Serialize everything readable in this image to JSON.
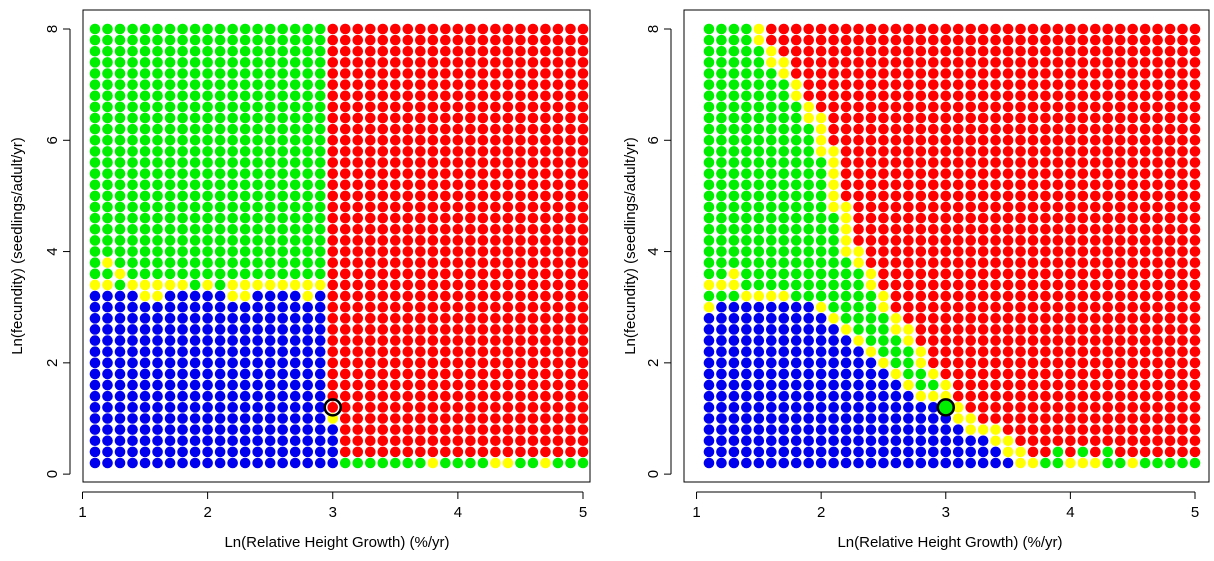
{
  "colors": {
    "red": "#ff0000",
    "green": "#00ee00",
    "blue": "#0000ee",
    "yellow": "#ffff00",
    "axis": "#000000",
    "highlight_ring": "#000000"
  },
  "chart_data": [
    {
      "type": "scatter",
      "title": "",
      "xlabel": "Ln(Relative Height Growth) (%/yr)",
      "ylabel": "Ln(fecundity) (seedlings/adult/yr)",
      "xlim": [
        1.05,
        5.05
      ],
      "ylim": [
        -0.1,
        8.2
      ],
      "xticks": [
        1,
        2,
        3,
        4,
        5
      ],
      "yticks": [
        0,
        2,
        4,
        6,
        8
      ],
      "grid": false,
      "grid_points": {
        "x_start": 1.1,
        "x_end": 5.0,
        "x_step": 0.1,
        "y_start": 0.2,
        "y_end": 8.0,
        "y_step": 0.2
      },
      "regions": "left panel: red where x >= 3.0; blue where x < 3.0 and y <= 3.2; yellow band at y = 3.4 (and a few points at 3.6-3.8); green elsewhere; bottom row y = 0.2 for x >= 3.1 is green with some yellow; x = 3.0 column yellow near y = 1.0",
      "highlight": {
        "x": 3.0,
        "y": 1.2,
        "fill": "none"
      }
    },
    {
      "type": "scatter",
      "title": "",
      "xlabel": "Ln(Relative Height Growth) (%/yr)",
      "ylabel": "Ln(fecundity) (seedlings/adult/yr)",
      "xlim": [
        1.05,
        5.05
      ],
      "ylim": [
        -0.1,
        8.2
      ],
      "xticks": [
        1,
        2,
        3,
        4,
        5
      ],
      "yticks": [
        0,
        2,
        4,
        6,
        8
      ],
      "grid": false,
      "grid_points": {
        "x_start": 1.1,
        "x_end": 5.0,
        "x_step": 0.1,
        "y_start": 0.2,
        "y_end": 8.0,
        "y_step": 0.2
      },
      "regions": "right panel: curved boundary; red region above/right of boundary x ~ 1.5 at top down to x ~ 3 at y ~ 1.2; yellow boundary band; green wedge between; blue bottom-left region",
      "highlight": {
        "x": 3.0,
        "y": 1.2,
        "fill": "green"
      }
    }
  ]
}
